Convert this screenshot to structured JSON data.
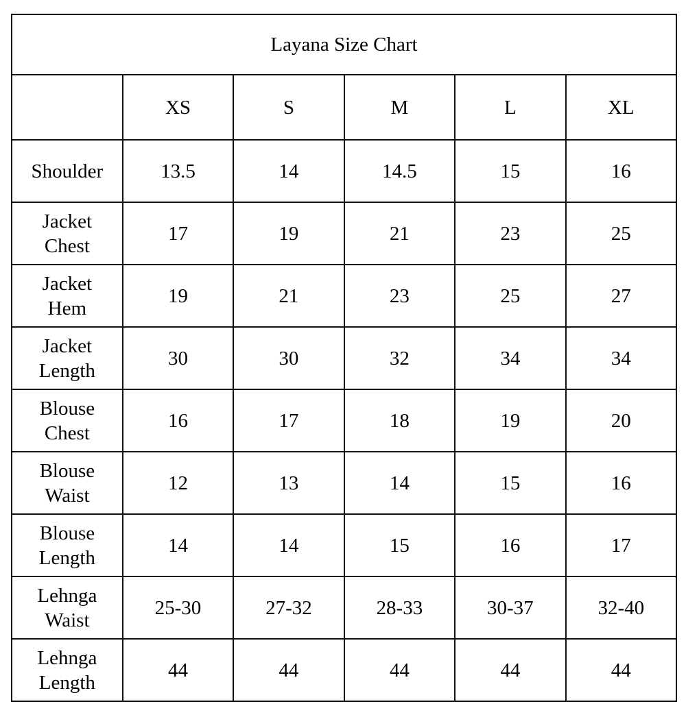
{
  "title": "Layana Size Chart",
  "sizes": [
    "XS",
    "S",
    "M",
    "L",
    "XL"
  ],
  "rows": [
    {
      "label": [
        "Shoulder"
      ],
      "values": [
        "13.5",
        "14",
        "14.5",
        "15",
        "16"
      ]
    },
    {
      "label": [
        "Jacket",
        "Chest"
      ],
      "values": [
        "17",
        "19",
        "21",
        "23",
        "25"
      ]
    },
    {
      "label": [
        "Jacket",
        "Hem"
      ],
      "values": [
        "19",
        "21",
        "23",
        "25",
        "27"
      ]
    },
    {
      "label": [
        "Jacket",
        "Length"
      ],
      "values": [
        "30",
        "30",
        "32",
        "34",
        "34"
      ]
    },
    {
      "label": [
        "Blouse",
        "Chest"
      ],
      "values": [
        "16",
        "17",
        "18",
        "19",
        "20"
      ]
    },
    {
      "label": [
        "Blouse",
        "Waist"
      ],
      "values": [
        "12",
        "13",
        "14",
        "15",
        "16"
      ]
    },
    {
      "label": [
        "Blouse",
        "Length"
      ],
      "values": [
        "14",
        "14",
        "15",
        "16",
        "17"
      ]
    },
    {
      "label": [
        "Lehnga",
        "Waist"
      ],
      "values": [
        "25-30",
        "27-32",
        "28-33",
        "30-37",
        "32-40"
      ]
    },
    {
      "label": [
        "Lehnga",
        "Length"
      ],
      "values": [
        "44",
        "44",
        "44",
        "44",
        "44"
      ]
    }
  ]
}
